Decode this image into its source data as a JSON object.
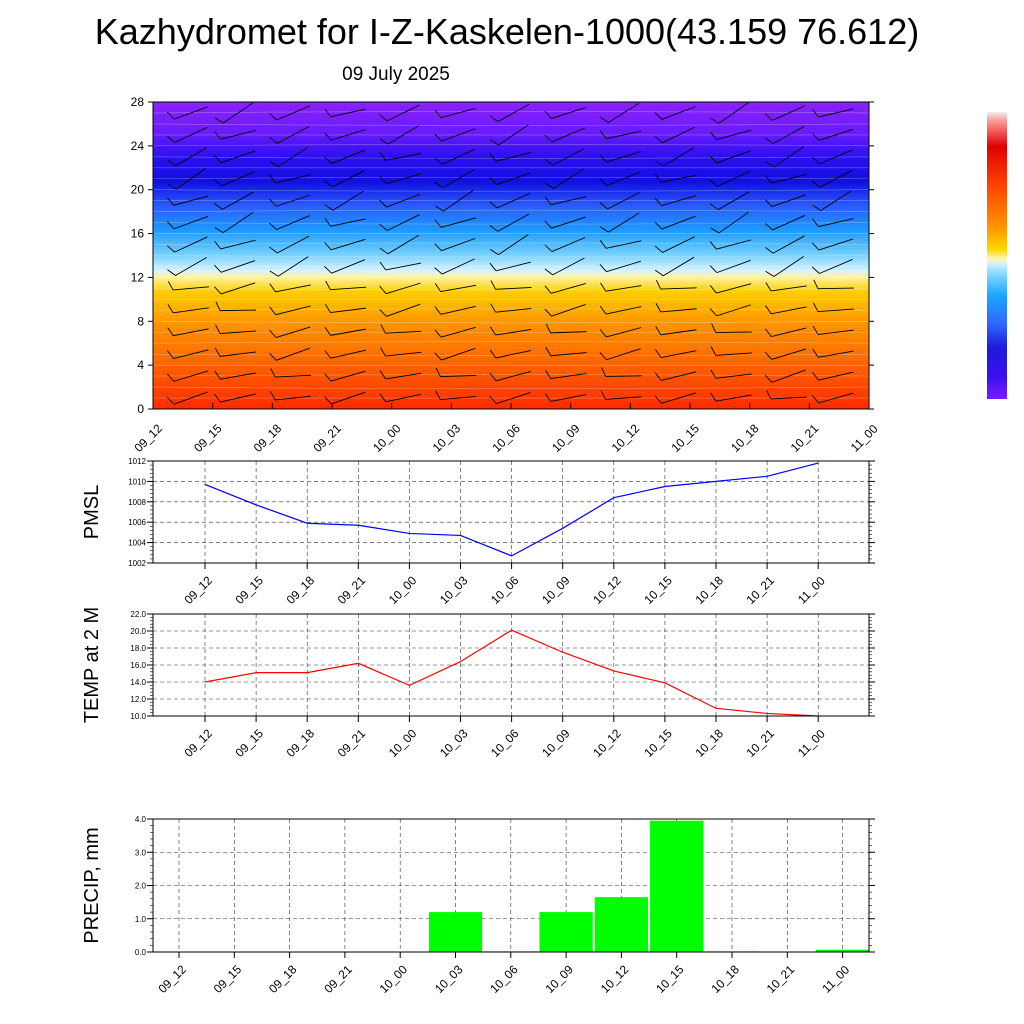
{
  "header": {
    "title": "Kazhydromet for I-Z-Kaskelen-1000(43.159 76.612)",
    "date": "09 July 2025"
  },
  "times": [
    "09_12",
    "09_15",
    "09_18",
    "09_21",
    "10_00",
    "10_03",
    "10_06",
    "10_09",
    "10_12",
    "10_15",
    "10_18",
    "10_21",
    "11_00"
  ],
  "chart_data": [
    {
      "type": "heatmap",
      "title": "",
      "ylabel": "",
      "x": [
        "09_12",
        "09_15",
        "09_18",
        "09_21",
        "10_00",
        "10_03",
        "10_06",
        "10_09",
        "10_12",
        "10_15",
        "10_18",
        "10_21",
        "11_00"
      ],
      "y_ticks": [
        0,
        4,
        8,
        12,
        16,
        20,
        24,
        28
      ],
      "ylim": [
        0,
        28
      ],
      "description_colors": [
        "#e00000",
        "#ff6a00",
        "#ffd800",
        "#fff7b0",
        "#1aa6ff",
        "#1b1bd8",
        "#7a1bff"
      ],
      "wind_barbs": true,
      "colorbar": "right"
    },
    {
      "type": "line",
      "ylabel": "PMSL",
      "x": [
        "09_12",
        "09_15",
        "09_18",
        "09_21",
        "10_00",
        "10_03",
        "10_06",
        "10_09",
        "10_12",
        "10_15",
        "10_18",
        "10_21",
        "11_00"
      ],
      "values": [
        1009.7,
        1007.7,
        1005.9,
        1005.7,
        1004.9,
        1004.7,
        1002.7,
        1005.4,
        1008.4,
        1009.5,
        1010.0,
        1010.5,
        1011.8
      ],
      "ylim": [
        1002,
        1012
      ],
      "y_ticks": [
        "1002",
        "1004",
        "1006",
        "1008",
        "1010",
        "1012"
      ],
      "color": "#0000ff",
      "grid": true
    },
    {
      "type": "line",
      "ylabel": "TEMP at 2 M",
      "x": [
        "09_12",
        "09_15",
        "09_18",
        "09_21",
        "10_00",
        "10_03",
        "10_06",
        "10_09",
        "10_12",
        "10_15",
        "10_18",
        "10_21",
        "11_00"
      ],
      "values": [
        14.0,
        15.1,
        15.1,
        16.2,
        13.6,
        16.4,
        20.1,
        17.5,
        15.3,
        13.9,
        10.9,
        10.3,
        10.0
      ],
      "ylim": [
        10,
        22
      ],
      "y_ticks": [
        "10.0",
        "12.0",
        "14.0",
        "16.0",
        "18.0",
        "20.0",
        "22.0"
      ],
      "color": "#ff0000",
      "grid": true
    },
    {
      "type": "bar",
      "ylabel": "PRECIP, mm",
      "categories": [
        "09_12",
        "09_15",
        "09_18",
        "09_21",
        "10_00",
        "10_03",
        "10_06",
        "10_09",
        "10_12",
        "10_15",
        "10_18",
        "10_21",
        "11_00"
      ],
      "values": [
        0,
        0,
        0,
        0,
        0,
        1.2,
        0.02,
        1.2,
        1.65,
        3.95,
        0.02,
        0,
        0.07
      ],
      "ylim": [
        0,
        4
      ],
      "y_ticks": [
        "0.0",
        "1.0",
        "2.0",
        "3.0",
        "4.0"
      ],
      "color": "#00ff00",
      "grid": true
    }
  ]
}
